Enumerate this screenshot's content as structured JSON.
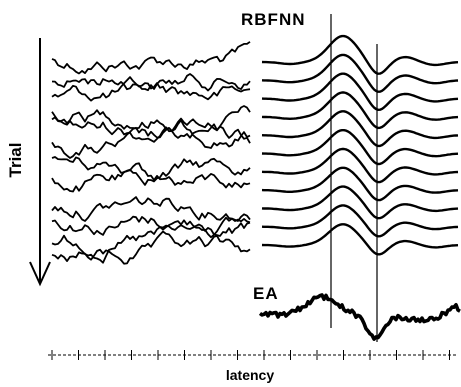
{
  "labels": {
    "top_right": "RBFNN",
    "bottom_right": "EA",
    "y_axis": "Trial",
    "x_axis": "latency"
  },
  "colors": {
    "ink": "#000000",
    "background": "#ffffff"
  },
  "panels": {
    "left": {
      "description": "stacked noisy single-trial traces",
      "trace_count": 12
    },
    "right": {
      "description": "stacked smooth RBFNN-estimated traces",
      "trace_count": 11
    }
  },
  "markers": {
    "vertical_line_count": 2
  },
  "axis": {
    "tick_count": 16
  }
}
